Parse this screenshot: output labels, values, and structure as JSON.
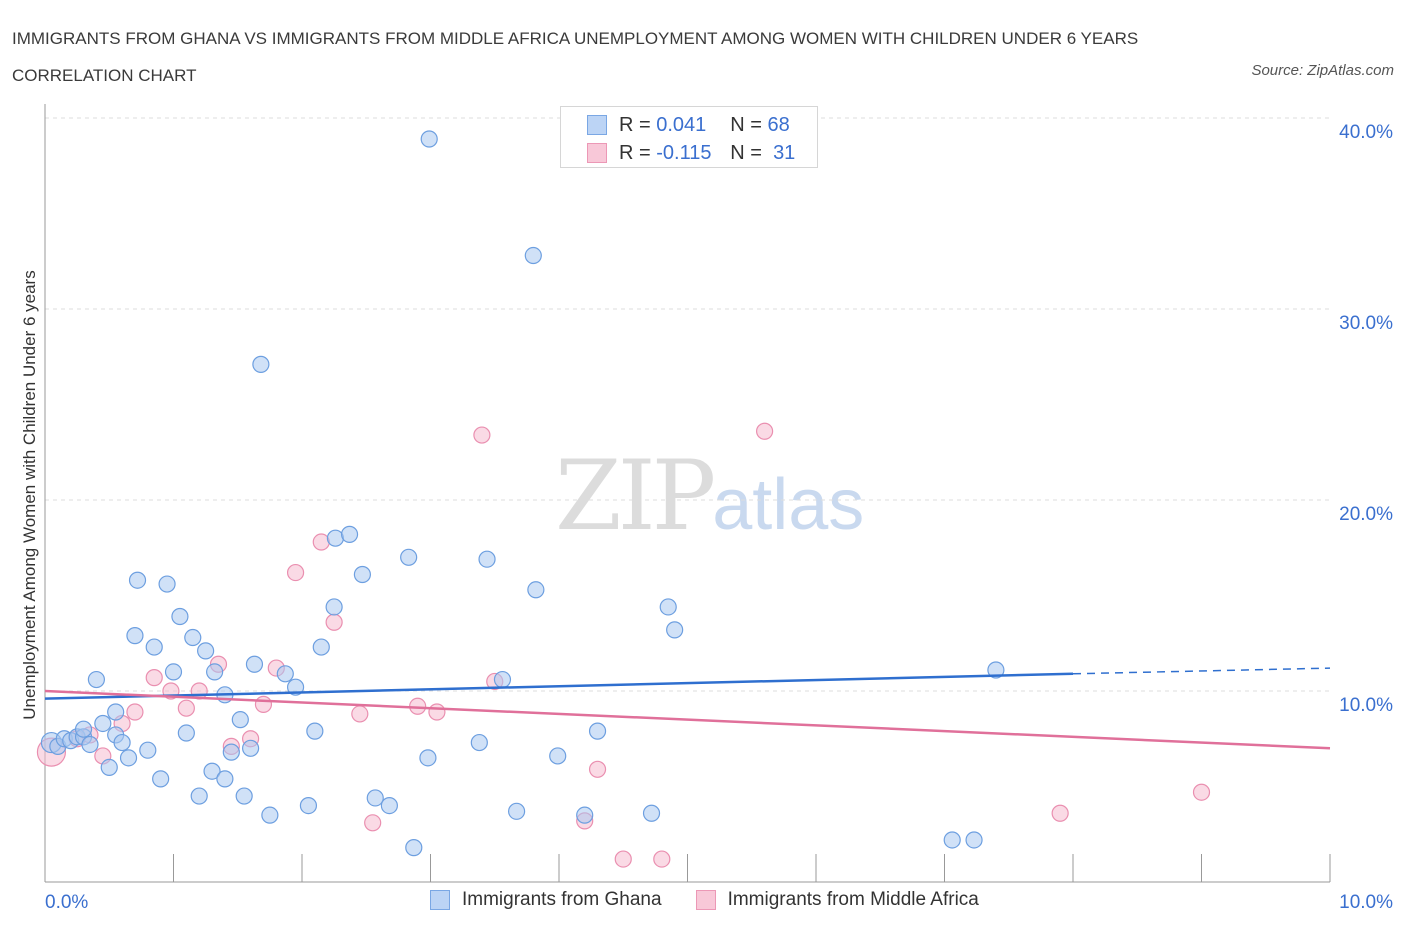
{
  "title": "IMMIGRANTS FROM GHANA VS IMMIGRANTS FROM MIDDLE AFRICA UNEMPLOYMENT AMONG WOMEN WITH CHILDREN UNDER 6 YEARS CORRELATION CHART",
  "source": "Source: ZipAtlas.com",
  "watermark": {
    "zip": "ZIP",
    "atlas": "atlas"
  },
  "legend": {
    "rows": [
      {
        "r_label": "R =",
        "r_value": "0.041",
        "n_label": "N =",
        "n_value": "68"
      },
      {
        "r_label": "R =",
        "r_value": "-0.115",
        "n_label": "N =",
        "n_value": "31"
      }
    ]
  },
  "colors": {
    "ghana_fill": "#a9c8f0",
    "ghana_stroke": "#6d9fe0",
    "ghana_line": "#2f6fcf",
    "africa_fill": "#f6bcd0",
    "africa_stroke": "#ea8fb0",
    "africa_line": "#e0709a",
    "tick_text": "#3a6fcf",
    "grid": "#dddddd"
  },
  "chart_data": {
    "type": "scatter",
    "title": "IMMIGRANTS FROM GHANA VS IMMIGRANTS FROM MIDDLE AFRICA UNEMPLOYMENT AMONG WOMEN WITH CHILDREN UNDER 6 YEARS CORRELATION CHART",
    "xlabel": "",
    "ylabel": "Unemployment Among Women with Children Under 6 years",
    "xlim": [
      0,
      10
    ],
    "ylim": [
      0,
      40
    ],
    "x_tick_labels": [
      "0.0%",
      "10.0%"
    ],
    "y_ticks": [
      10,
      20,
      30,
      40
    ],
    "y_tick_labels": [
      "10.0%",
      "20.0%",
      "30.0%",
      "40.0%"
    ],
    "legend_placement": "bottom",
    "grid": true,
    "series": [
      {
        "name": "Immigrants from Ghana",
        "R": 0.041,
        "N": 68,
        "trend": {
          "x0": 0,
          "y0": 9.6,
          "x1": 8.0,
          "y1": 10.9,
          "dash_to_x": 10,
          "dash_to_y": 11.2
        },
        "points": [
          [
            0.05,
            7.3
          ],
          [
            0.1,
            7.1
          ],
          [
            0.15,
            7.5
          ],
          [
            0.2,
            7.4
          ],
          [
            0.25,
            7.6
          ],
          [
            0.3,
            7.6
          ],
          [
            0.3,
            8.0
          ],
          [
            0.35,
            7.2
          ],
          [
            0.4,
            10.6
          ],
          [
            0.45,
            8.3
          ],
          [
            0.5,
            6.0
          ],
          [
            0.55,
            7.7
          ],
          [
            0.55,
            8.9
          ],
          [
            0.6,
            7.3
          ],
          [
            0.65,
            6.5
          ],
          [
            0.7,
            12.9
          ],
          [
            0.72,
            15.8
          ],
          [
            0.8,
            6.9
          ],
          [
            0.85,
            12.3
          ],
          [
            0.9,
            5.4
          ],
          [
            0.95,
            15.6
          ],
          [
            1.0,
            11.0
          ],
          [
            1.05,
            13.9
          ],
          [
            1.1,
            7.8
          ],
          [
            1.15,
            12.8
          ],
          [
            1.2,
            4.5
          ],
          [
            1.25,
            12.1
          ],
          [
            1.3,
            5.8
          ],
          [
            1.32,
            11.0
          ],
          [
            1.4,
            5.4
          ],
          [
            1.4,
            9.8
          ],
          [
            1.45,
            6.8
          ],
          [
            1.52,
            8.5
          ],
          [
            1.55,
            4.5
          ],
          [
            1.6,
            7.0
          ],
          [
            1.63,
            11.4
          ],
          [
            1.68,
            27.1
          ],
          [
            1.75,
            3.5
          ],
          [
            1.87,
            10.9
          ],
          [
            1.95,
            10.2
          ],
          [
            2.05,
            4.0
          ],
          [
            2.1,
            7.9
          ],
          [
            2.15,
            12.3
          ],
          [
            2.25,
            14.4
          ],
          [
            2.26,
            18.0
          ],
          [
            2.37,
            18.2
          ],
          [
            2.47,
            16.1
          ],
          [
            2.57,
            4.4
          ],
          [
            2.68,
            4.0
          ],
          [
            2.83,
            17.0
          ],
          [
            2.87,
            1.8
          ],
          [
            2.98,
            6.5
          ],
          [
            2.99,
            38.9
          ],
          [
            3.38,
            7.3
          ],
          [
            3.44,
            16.9
          ],
          [
            3.56,
            10.6
          ],
          [
            3.67,
            3.7
          ],
          [
            3.8,
            32.8
          ],
          [
            3.82,
            15.3
          ],
          [
            3.99,
            6.6
          ],
          [
            4.2,
            3.5
          ],
          [
            4.3,
            7.9
          ],
          [
            4.72,
            3.6
          ],
          [
            4.85,
            14.4
          ],
          [
            4.9,
            13.2
          ],
          [
            7.06,
            2.2
          ],
          [
            7.23,
            2.2
          ],
          [
            7.4,
            11.1
          ]
        ]
      },
      {
        "name": "Immigrants from Middle Africa",
        "R": -0.115,
        "N": 31,
        "trend": {
          "x0": 0,
          "y0": 10.0,
          "x1": 10,
          "y1": 7.0
        },
        "points": [
          [
            0.05,
            6.8
          ],
          [
            0.25,
            7.5
          ],
          [
            0.35,
            7.7
          ],
          [
            0.45,
            6.6
          ],
          [
            0.6,
            8.3
          ],
          [
            0.7,
            8.9
          ],
          [
            0.85,
            10.7
          ],
          [
            0.98,
            10.0
          ],
          [
            1.1,
            9.1
          ],
          [
            1.2,
            10.0
          ],
          [
            1.35,
            11.4
          ],
          [
            1.45,
            7.1
          ],
          [
            1.6,
            7.5
          ],
          [
            1.7,
            9.3
          ],
          [
            1.8,
            11.2
          ],
          [
            1.95,
            16.2
          ],
          [
            2.15,
            17.8
          ],
          [
            2.25,
            13.6
          ],
          [
            2.45,
            8.8
          ],
          [
            2.55,
            3.1
          ],
          [
            2.9,
            9.2
          ],
          [
            3.05,
            8.9
          ],
          [
            3.4,
            23.4
          ],
          [
            3.5,
            10.5
          ],
          [
            4.2,
            3.2
          ],
          [
            4.3,
            5.9
          ],
          [
            4.5,
            1.2
          ],
          [
            4.8,
            1.2
          ],
          [
            5.6,
            23.6
          ],
          [
            7.9,
            3.6
          ],
          [
            9.0,
            4.7
          ]
        ]
      }
    ]
  }
}
